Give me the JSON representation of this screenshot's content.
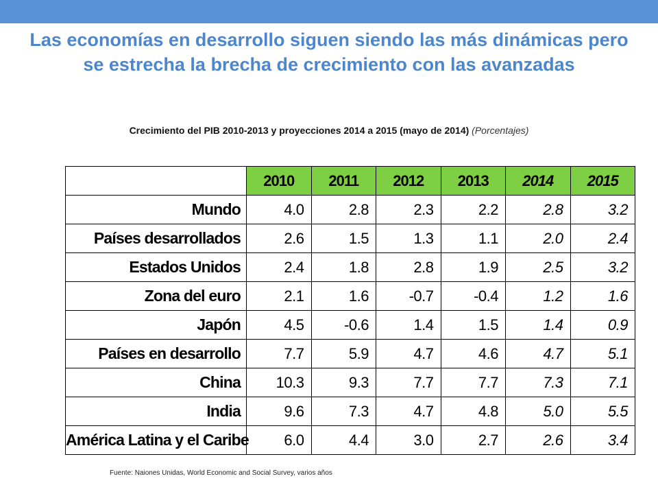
{
  "colors": {
    "top_bar": "#5b91d6",
    "title": "#4d86cc",
    "header_fill": "#7fcf44"
  },
  "title": "Las economías en desarrollo siguen siendo las más dinámicas pero se estrecha la brecha de crecimiento con las avanzadas",
  "subtitle": "Crecimiento del PIB 2010-2013 y proyecciones 2014 a 2015 (mayo de 2014)",
  "unit": "(Porcentajes)",
  "source": "Fuente: Naiones Unidas,  World Economic and Social Survey, varios años",
  "chart_data": {
    "type": "table",
    "columns": [
      "2010",
      "2011",
      "2012",
      "2013",
      "2014",
      "2015"
    ],
    "projection_columns": [
      "2014",
      "2015"
    ],
    "rows": [
      {
        "label": "Mundo",
        "values": [
          "4.0",
          "2.8",
          "2.3",
          "2.2",
          "2.8",
          "3.2"
        ]
      },
      {
        "label": "Países desarrollados",
        "values": [
          "2.6",
          "1.5",
          "1.3",
          "1.1",
          "2.0",
          "2.4"
        ]
      },
      {
        "label": "Estados Unidos",
        "values": [
          "2.4",
          "1.8",
          "2.8",
          "1.9",
          "2.5",
          "3.2"
        ]
      },
      {
        "label": "Zona del euro",
        "values": [
          "2.1",
          "1.6",
          "-0.7",
          "-0.4",
          "1.2",
          "1.6"
        ]
      },
      {
        "label": "Japón",
        "values": [
          "4.5",
          "-0.6",
          "1.4",
          "1.5",
          "1.4",
          "0.9"
        ]
      },
      {
        "label": "Países en desarrollo",
        "values": [
          "7.7",
          "5.9",
          "4.7",
          "4.6",
          "4.7",
          "5.1"
        ]
      },
      {
        "label": "China",
        "values": [
          "10.3",
          "9.3",
          "7.7",
          "7.7",
          "7.3",
          "7.1"
        ]
      },
      {
        "label": "India",
        "values": [
          "9.6",
          "7.3",
          "4.7",
          "4.8",
          "5.0",
          "5.5"
        ]
      },
      {
        "label": "América Latina y el Caribe",
        "values": [
          "6.0",
          "4.4",
          "3.0",
          "2.7",
          "2.6",
          "3.4"
        ]
      }
    ]
  }
}
